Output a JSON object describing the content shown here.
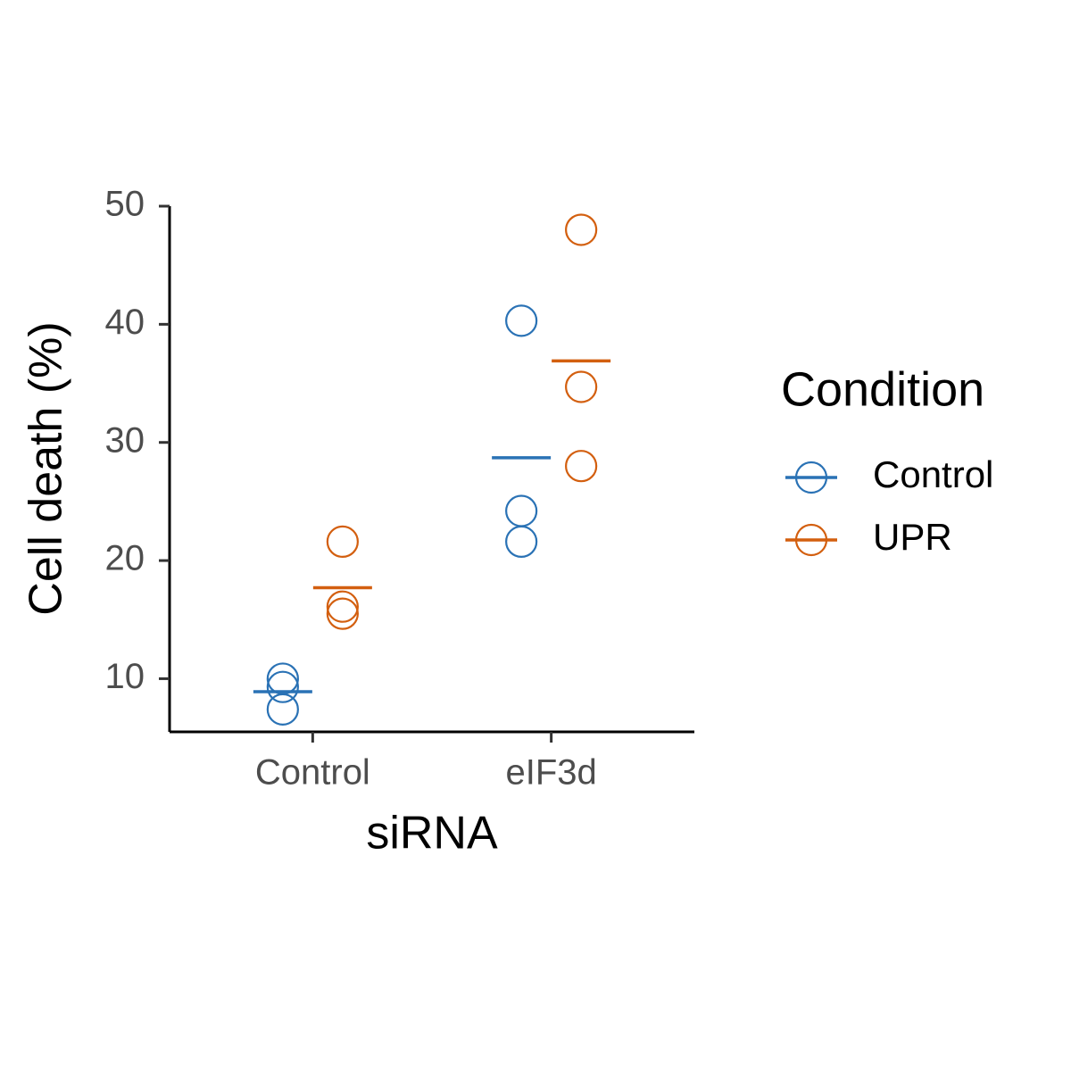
{
  "chart_data": {
    "type": "dotplot",
    "x_label": "siRNA",
    "y_label": "Cell death (%)",
    "legend_title": "Condition",
    "categories": [
      "Control",
      "eIF3d"
    ],
    "series": [
      {
        "name": "Control",
        "color": "#2a72b5",
        "values": [
          [
            10.0,
            9.3,
            7.4
          ],
          [
            40.3,
            24.2,
            21.6
          ]
        ],
        "means": [
          8.9,
          28.7
        ]
      },
      {
        "name": "UPR",
        "color": "#d35f0f",
        "values": [
          [
            21.6,
            16.1,
            15.5
          ],
          [
            48.0,
            34.7,
            28.0
          ]
        ],
        "means": [
          17.7,
          36.9
        ]
      }
    ],
    "ylim": [
      5.5,
      50
    ],
    "yticks": [
      10,
      20,
      30,
      40,
      50
    ],
    "legend": "right"
  }
}
